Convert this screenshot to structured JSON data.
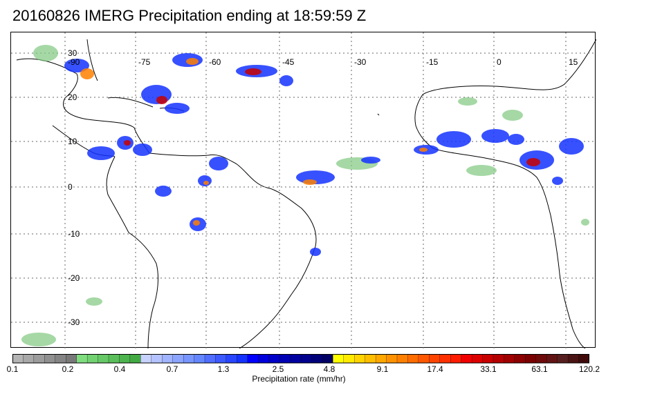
{
  "title": "20160826 IMERG Precipitation ending at 18:59:59 Z",
  "map": {
    "lon_labels": [
      "-90",
      "-75",
      "-60",
      "-45",
      "-30",
      "-15",
      "0",
      "15"
    ],
    "lat_labels": [
      "30",
      "20",
      "10",
      "0",
      "-10",
      "-20",
      "-30"
    ],
    "grid_style": "dotted"
  },
  "colorbar": {
    "title": "Precipitation rate (mm/hr)",
    "tick_labels": [
      "0.1",
      "0.2",
      "0.4",
      "0.7",
      "1.3",
      "2.5",
      "4.8",
      "9.1",
      "17.4",
      "33.1",
      "63.1",
      "120.2"
    ],
    "colors": [
      "#b4b4b4",
      "#a8a8a8",
      "#9c9c9c",
      "#909090",
      "#848484",
      "#787878",
      "#7fdc7f",
      "#72d272",
      "#66c866",
      "#5abe5a",
      "#4eb44e",
      "#42aa42",
      "#c8d2ff",
      "#b4c3ff",
      "#a0b4ff",
      "#8ca5ff",
      "#7896ff",
      "#6487ff",
      "#506eff",
      "#3c5aff",
      "#2846ff",
      "#1432ff",
      "#0000ff",
      "#0000dc",
      "#0000c8",
      "#0000b4",
      "#0000a0",
      "#00008c",
      "#000078",
      "#000064",
      "#ffff00",
      "#ffea00",
      "#ffd400",
      "#ffbe00",
      "#ffa800",
      "#ff9200",
      "#ff8000",
      "#ff6c00",
      "#ff5800",
      "#ff4400",
      "#ff3000",
      "#ff1c00",
      "#f00000",
      "#dc0000",
      "#c80000",
      "#b40000",
      "#a00000",
      "#8c0000",
      "#7a0000",
      "#6e0a0a",
      "#621414",
      "#561e1e",
      "#4a1414",
      "#400a0a",
      "#000000"
    ]
  },
  "legend_colors": {
    "light": "#7fc87f",
    "moderate": "#1432ff",
    "heavy": "#ff8000",
    "intense": "#c80000"
  }
}
